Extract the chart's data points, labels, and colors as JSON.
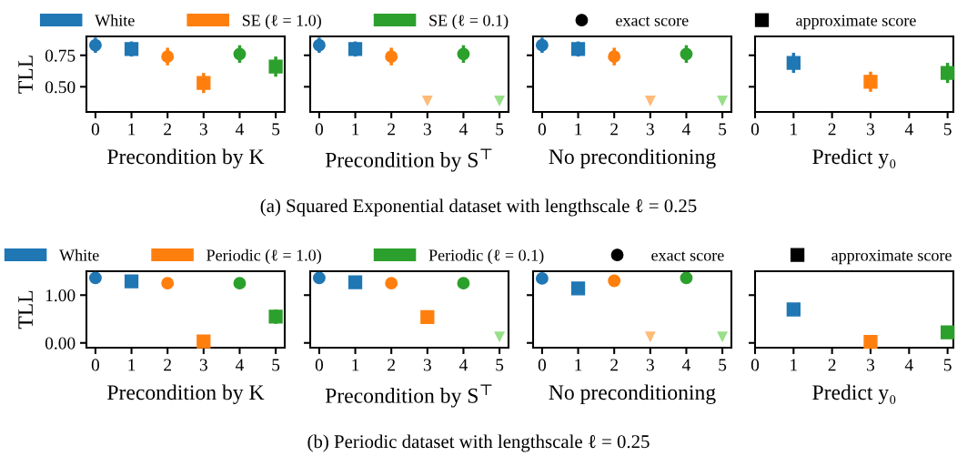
{
  "chart_data": [
    {
      "type": "scatter",
      "xlabel": "Precondition by K",
      "ylabel": "TLL",
      "xlim": [
        -0.25,
        5.25
      ],
      "xticks": [
        0,
        1,
        2,
        3,
        4,
        5
      ],
      "ylim": [
        0.3,
        0.9
      ],
      "yticks": [
        {
          "value": 0.5,
          "label": "0.50"
        },
        {
          "value": 0.75,
          "label": "0.75"
        }
      ],
      "legend": "top",
      "annotations": [
        "exact score",
        "approximate score",
        "(a) Squared Exponential dataset with lengthscale ℓ = 0.25"
      ],
      "series": [
        {
          "name": "White",
          "color": "#1f77b4",
          "marker": "circle",
          "x": [
            0
          ],
          "values": [
            0.83
          ],
          "errors": [
            0.06
          ]
        },
        {
          "color": "#1f77b4",
          "marker": "square",
          "x": [
            1
          ],
          "values": [
            0.8
          ],
          "errors": [
            0.06
          ]
        },
        {
          "name": "SE (ℓ = 1.0)",
          "color": "#ff7f0e",
          "marker": "circle",
          "x": [
            2
          ],
          "values": [
            0.74
          ],
          "errors": [
            0.07
          ]
        },
        {
          "color": "#ff7f0e",
          "marker": "square",
          "x": [
            3
          ],
          "values": [
            0.53
          ],
          "errors": [
            0.08
          ]
        },
        {
          "name": "SE (ℓ = 0.1)",
          "color": "#2ca02c",
          "marker": "circle",
          "x": [
            4
          ],
          "values": [
            0.76
          ],
          "errors": [
            0.07
          ]
        },
        {
          "color": "#2ca02c",
          "marker": "square",
          "x": [
            5
          ],
          "values": [
            0.66
          ],
          "errors": [
            0.08
          ]
        }
      ]
    },
    {
      "type": "scatter",
      "xlabel": "Precondition by S$^{⊤}$",
      "xlim": [
        -0.25,
        5.25
      ],
      "xticks": [
        0,
        1,
        2,
        3,
        4,
        5
      ],
      "ylim": [
        0.3,
        0.9
      ],
      "yticks": [
        0.5,
        0.75
      ],
      "tick_labels": "x",
      "series": [
        {
          "color": "#1f77b4",
          "marker": "circle",
          "x": [
            0
          ],
          "values": [
            0.83
          ],
          "errors": [
            0.06
          ]
        },
        {
          "color": "#1f77b4",
          "marker": "square",
          "x": [
            1
          ],
          "values": [
            0.8
          ],
          "errors": [
            0.06
          ]
        },
        {
          "color": "#ff7f0e",
          "marker": "circle",
          "x": [
            2
          ],
          "values": [
            0.74
          ],
          "errors": [
            0.07
          ]
        },
        {
          "color": "#2ca02c",
          "marker": "circle",
          "x": [
            4
          ],
          "values": [
            0.76
          ],
          "errors": [
            0.07
          ]
        },
        {
          "color": "#ffbb78",
          "marker": "triangle",
          "x": [
            3
          ],
          "values": [
            0.39
          ]
        },
        {
          "color": "#98df8a",
          "marker": "triangle",
          "x": [
            5
          ],
          "values": [
            0.39
          ]
        }
      ]
    },
    {
      "type": "scatter",
      "xlabel": "No preconditioning",
      "xlim": [
        -0.25,
        5.25
      ],
      "xticks": [
        0,
        1,
        2,
        3,
        4,
        5
      ],
      "ylim": [
        0.3,
        0.9
      ],
      "yticks": [
        0.5,
        0.75
      ],
      "tick_labels": "x",
      "series": [
        {
          "color": "#1f77b4",
          "marker": "circle",
          "x": [
            0
          ],
          "values": [
            0.83
          ],
          "errors": [
            0.06
          ]
        },
        {
          "color": "#1f77b4",
          "marker": "square",
          "x": [
            1
          ],
          "values": [
            0.8
          ],
          "errors": [
            0.06
          ]
        },
        {
          "color": "#ff7f0e",
          "marker": "circle",
          "x": [
            2
          ],
          "values": [
            0.74
          ],
          "errors": [
            0.07
          ]
        },
        {
          "color": "#2ca02c",
          "marker": "circle",
          "x": [
            4
          ],
          "values": [
            0.76
          ],
          "errors": [
            0.07
          ]
        },
        {
          "color": "#ffbb78",
          "marker": "triangle",
          "x": [
            3
          ],
          "values": [
            0.39
          ]
        },
        {
          "color": "#98df8a",
          "marker": "triangle",
          "x": [
            5
          ],
          "values": [
            0.39
          ]
        }
      ]
    },
    {
      "type": "scatter",
      "xlabel": "Predict y₀",
      "xlim": [
        0,
        5.15
      ],
      "xticks": [
        0,
        1,
        2,
        3,
        4,
        5
      ],
      "ylim": [
        0.3,
        0.9
      ],
      "yticks": [
        0.5,
        0.75
      ],
      "tick_labels": "x",
      "series": [
        {
          "color": "#1f77b4",
          "marker": "square",
          "x": [
            1
          ],
          "values": [
            0.69
          ],
          "errors": [
            0.08
          ]
        },
        {
          "color": "#ff7f0e",
          "marker": "square",
          "x": [
            3
          ],
          "values": [
            0.54
          ],
          "errors": [
            0.08
          ]
        },
        {
          "color": "#2ca02c",
          "marker": "square",
          "x": [
            5
          ],
          "values": [
            0.61
          ],
          "errors": [
            0.08
          ]
        }
      ]
    },
    {
      "type": "scatter",
      "xlabel": "Precondition by K",
      "ylabel": "TLL",
      "xlim": [
        -0.25,
        5.25
      ],
      "xticks": [
        0,
        1,
        2,
        3,
        4,
        5
      ],
      "ylim": [
        -0.1,
        1.5
      ],
      "yticks": [
        {
          "value": 0,
          "label": "0.00"
        },
        {
          "value": 1,
          "label": "1.00"
        }
      ],
      "legend": "top",
      "annotations": [
        "exact score",
        "approximate score",
        "(b) Periodic dataset with lengthscale ℓ = 0.25"
      ],
      "series": [
        {
          "name": "White",
          "color": "#1f77b4",
          "marker": "circle",
          "x": [
            0
          ],
          "values": [
            1.36
          ]
        },
        {
          "color": "#1f77b4",
          "marker": "square",
          "x": [
            1
          ],
          "values": [
            1.29
          ]
        },
        {
          "name": "Periodic (ℓ = 1.0)",
          "color": "#ff7f0e",
          "marker": "circle",
          "x": [
            2
          ],
          "values": [
            1.25
          ]
        },
        {
          "color": "#ff7f0e",
          "marker": "square",
          "x": [
            3
          ],
          "values": [
            0.03
          ]
        },
        {
          "name": "Periodic (ℓ = 0.1)",
          "color": "#2ca02c",
          "marker": "circle",
          "x": [
            4
          ],
          "values": [
            1.25
          ]
        },
        {
          "color": "#2ca02c",
          "marker": "square",
          "x": [
            5
          ],
          "values": [
            0.55
          ],
          "errors": [
            0.15
          ]
        }
      ]
    },
    {
      "type": "scatter",
      "xlabel": "Precondition by S$^{⊤}$",
      "xlim": [
        -0.25,
        5.25
      ],
      "xticks": [
        0,
        1,
        2,
        3,
        4,
        5
      ],
      "ylim": [
        -0.1,
        1.5
      ],
      "yticks": [
        0,
        1
      ],
      "tick_labels": "x",
      "series": [
        {
          "color": "#1f77b4",
          "marker": "circle",
          "x": [
            0
          ],
          "values": [
            1.36
          ]
        },
        {
          "color": "#1f77b4",
          "marker": "square",
          "x": [
            1
          ],
          "values": [
            1.27
          ]
        },
        {
          "color": "#ff7f0e",
          "marker": "circle",
          "x": [
            2
          ],
          "values": [
            1.25
          ]
        },
        {
          "color": "#ff7f0e",
          "marker": "square",
          "x": [
            3
          ],
          "values": [
            0.54
          ]
        },
        {
          "color": "#2ca02c",
          "marker": "circle",
          "x": [
            4
          ],
          "values": [
            1.25
          ]
        },
        {
          "color": "#98df8a",
          "marker": "triangle",
          "x": [
            5
          ],
          "values": [
            0.13
          ]
        }
      ]
    },
    {
      "type": "scatter",
      "xlabel": "No preconditioning",
      "xlim": [
        -0.25,
        5.25
      ],
      "xticks": [
        0,
        1,
        2,
        3,
        4,
        5
      ],
      "ylim": [
        -0.1,
        1.5
      ],
      "yticks": [
        0,
        1
      ],
      "tick_labels": "x",
      "series": [
        {
          "color": "#1f77b4",
          "marker": "circle",
          "x": [
            0
          ],
          "values": [
            1.35
          ]
        },
        {
          "color": "#1f77b4",
          "marker": "square",
          "x": [
            1
          ],
          "values": [
            1.14
          ]
        },
        {
          "color": "#ff7f0e",
          "marker": "circle",
          "x": [
            2
          ],
          "values": [
            1.3
          ]
        },
        {
          "color": "#2ca02c",
          "marker": "circle",
          "x": [
            4
          ],
          "values": [
            1.36
          ]
        },
        {
          "color": "#ffbb78",
          "marker": "triangle",
          "x": [
            3
          ],
          "values": [
            0.13
          ]
        },
        {
          "color": "#98df8a",
          "marker": "triangle",
          "x": [
            5
          ],
          "values": [
            0.13
          ]
        }
      ]
    },
    {
      "type": "scatter",
      "xlabel": "Predict y₀",
      "xlim": [
        0,
        5.15
      ],
      "xticks": [
        0,
        1,
        2,
        3,
        4,
        5
      ],
      "ylim": [
        -0.1,
        1.5
      ],
      "yticks": [
        0,
        1
      ],
      "tick_labels": "x",
      "series": [
        {
          "color": "#1f77b4",
          "marker": "square",
          "x": [
            1
          ],
          "values": [
            0.7
          ]
        },
        {
          "color": "#ff7f0e",
          "marker": "square",
          "x": [
            3
          ],
          "values": [
            0.02
          ]
        },
        {
          "color": "#2ca02c",
          "marker": "square",
          "x": [
            5
          ],
          "values": [
            0.22
          ]
        }
      ]
    }
  ]
}
